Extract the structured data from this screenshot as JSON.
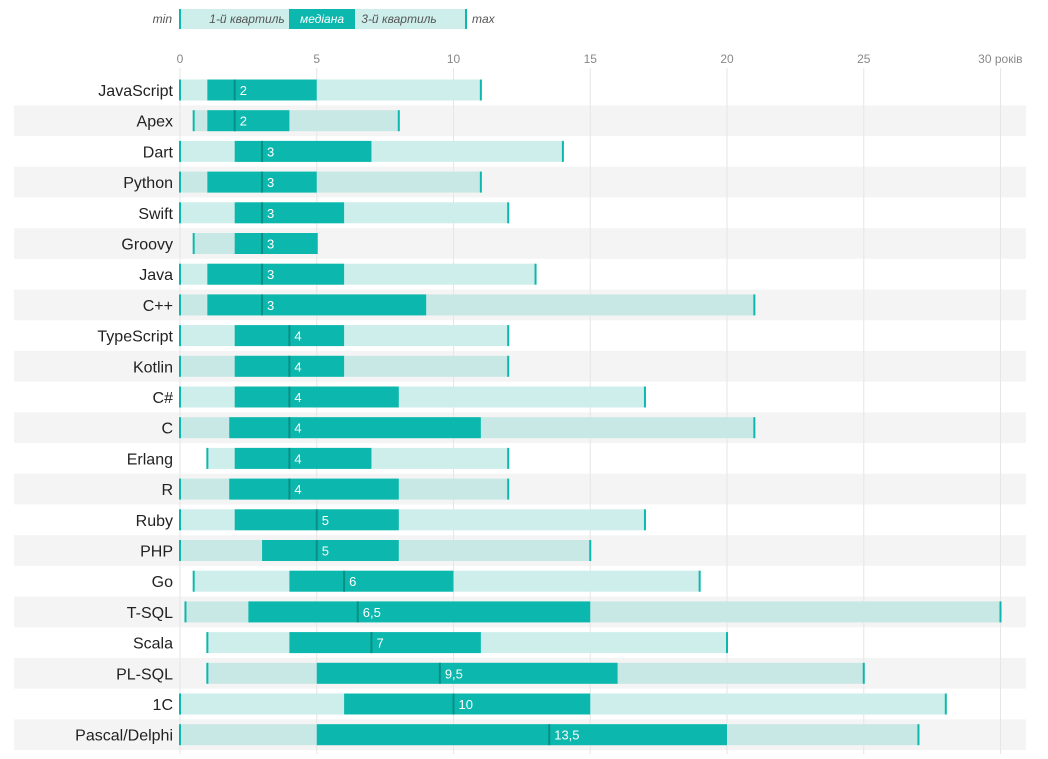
{
  "chart_data": {
    "type": "box-range-bar",
    "title": "",
    "unit_label": "років",
    "xlim": [
      0,
      30
    ],
    "xticks": [
      0,
      5,
      10,
      15,
      20,
      25,
      30
    ],
    "xtick_labels": [
      "0",
      "5",
      "10",
      "15",
      "20",
      "25",
      "30 років"
    ],
    "legend": {
      "min": "min",
      "q1": "1-й квартиль",
      "median": "медіана",
      "q3": "3-й квартиль",
      "max": "max"
    },
    "categories": [
      "JavaScript",
      "Apex",
      "Dart",
      "Python",
      "Swift",
      "Groovy",
      "Java",
      "C++",
      "TypeScript",
      "Kotlin",
      "C#",
      "C",
      "Erlang",
      "R",
      "Ruby",
      "PHP",
      "Go",
      "T-SQL",
      "Scala",
      "PL-SQL",
      "1С",
      "Pascal/Delphi"
    ],
    "series": [
      {
        "name": "min",
        "values": [
          0,
          0.5,
          0,
          0,
          0,
          0.5,
          0,
          0,
          0,
          0,
          0,
          0,
          1,
          0,
          0,
          0,
          0.5,
          0.2,
          1,
          1,
          0,
          0
        ]
      },
      {
        "name": "q1",
        "values": [
          1,
          1,
          2,
          1,
          2,
          2,
          1,
          1,
          2,
          2,
          2,
          1.8,
          2,
          1.8,
          2,
          3,
          4,
          2.5,
          4,
          5,
          6,
          5
        ]
      },
      {
        "name": "median",
        "values": [
          2,
          2,
          3,
          3,
          3,
          3,
          3,
          3,
          4,
          4,
          4,
          4,
          4,
          4,
          5,
          5,
          6,
          6.5,
          7,
          9.5,
          10,
          13.5
        ]
      },
      {
        "name": "q3",
        "values": [
          5,
          4,
          7,
          5,
          6,
          5,
          6,
          9,
          6,
          6,
          8,
          11,
          7,
          8,
          8,
          8,
          10,
          15,
          11,
          16,
          15,
          20
        ]
      },
      {
        "name": "max",
        "values": [
          11,
          8,
          14,
          11,
          12,
          5,
          13,
          21,
          12,
          12,
          17,
          21,
          12,
          12,
          17,
          15,
          19,
          30,
          20,
          25,
          28,
          27
        ]
      }
    ],
    "median_labels": [
      "2",
      "2",
      "3",
      "3",
      "3",
      "3",
      "3",
      "3",
      "4",
      "4",
      "4",
      "4",
      "4",
      "4",
      "5",
      "5",
      "6",
      "6,5",
      "7",
      "9,5",
      "10",
      "13,5"
    ],
    "colors": {
      "range": "#cdeeeb",
      "range_alt": "#c8e8e5",
      "iqr": "#0cb8ad",
      "median_line": "#078f86",
      "max_tick": "#0cb8ad",
      "stripe": "#f4f4f4",
      "grid": "#e6e6e6"
    }
  }
}
